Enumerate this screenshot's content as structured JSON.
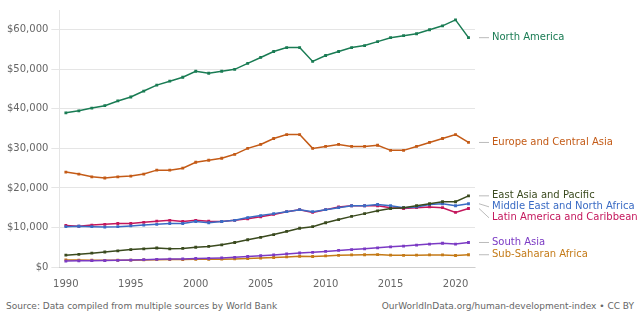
{
  "chart_data": {
    "type": "line",
    "x": [
      1990,
      1991,
      1992,
      1993,
      1994,
      1995,
      1996,
      1997,
      1998,
      1999,
      2000,
      2001,
      2002,
      2003,
      2004,
      2005,
      2006,
      2007,
      2008,
      2009,
      2010,
      2011,
      2012,
      2013,
      2014,
      2015,
      2016,
      2017,
      2018,
      2019,
      2020,
      2021
    ],
    "series": [
      {
        "name": "North America",
        "color": "#1a7c54",
        "values": [
          39000,
          39500,
          40200,
          40800,
          42000,
          43000,
          44500,
          46000,
          47000,
          48000,
          49500,
          49000,
          49500,
          50000,
          51500,
          53000,
          54500,
          55500,
          55500,
          52000,
          53500,
          54500,
          55500,
          56000,
          57000,
          58000,
          58500,
          59000,
          60000,
          61000,
          62500,
          58000
        ]
      },
      {
        "name": "Europe and Central Asia",
        "color": "#c45b17",
        "values": [
          24000,
          23500,
          22800,
          22500,
          22800,
          23000,
          23500,
          24500,
          24500,
          25000,
          26500,
          27000,
          27500,
          28500,
          30000,
          31000,
          32500,
          33500,
          33500,
          30000,
          30500,
          31000,
          30500,
          30500,
          30800,
          29500,
          29500,
          30500,
          31500,
          32500,
          33500,
          31500
        ]
      },
      {
        "name": "East Asia and Pacific",
        "color": "#3a4a1e",
        "values": [
          3000,
          3200,
          3500,
          3800,
          4100,
          4400,
          4600,
          4800,
          4600,
          4700,
          5000,
          5200,
          5600,
          6200,
          6900,
          7500,
          8200,
          9000,
          9800,
          10200,
          11200,
          12000,
          12800,
          13500,
          14200,
          14800,
          15000,
          15500,
          16000,
          16500,
          16500,
          18000
        ]
      },
      {
        "name": "Middle East and North Africa",
        "color": "#3a6bc4",
        "values": [
          10200,
          10300,
          10200,
          10100,
          10200,
          10400,
          10600,
          10800,
          11000,
          11000,
          11500,
          11200,
          11500,
          11800,
          12500,
          13000,
          13500,
          14000,
          14500,
          14000,
          14500,
          15000,
          15500,
          15500,
          15800,
          15500,
          15000,
          15200,
          15800,
          16000,
          15500,
          16000
        ]
      },
      {
        "name": "Latin America and Caribbean",
        "color": "#c4175c",
        "values": [
          10500,
          10300,
          10600,
          10800,
          11000,
          11000,
          11300,
          11600,
          11800,
          11500,
          11800,
          11600,
          11500,
          11800,
          12200,
          12700,
          13300,
          14000,
          14500,
          13800,
          14500,
          15200,
          15500,
          15500,
          15500,
          15000,
          14800,
          15000,
          15200,
          15000,
          13800,
          14800
        ]
      },
      {
        "name": "South Asia",
        "color": "#7b3ac4",
        "values": [
          1500,
          1550,
          1600,
          1620,
          1680,
          1750,
          1850,
          1950,
          2000,
          2050,
          2150,
          2200,
          2300,
          2450,
          2650,
          2850,
          3050,
          3300,
          3550,
          3700,
          3950,
          4200,
          4400,
          4600,
          4850,
          5100,
          5300,
          5550,
          5800,
          6000,
          5800,
          6200
        ]
      },
      {
        "name": "Sub-Saharan Africa",
        "color": "#c47a17",
        "values": [
          1800,
          1750,
          1700,
          1680,
          1700,
          1720,
          1800,
          1850,
          1870,
          1880,
          1950,
          1950,
          1980,
          2050,
          2150,
          2250,
          2400,
          2550,
          2700,
          2650,
          2800,
          2950,
          3050,
          3100,
          3150,
          3000,
          2950,
          3000,
          3050,
          3050,
          2900,
          3100
        ]
      }
    ],
    "xlim": [
      1989.5,
      2021.5
    ],
    "xticks": [
      1990,
      1995,
      2000,
      2005,
      2010,
      2015,
      2020
    ],
    "ylim": [
      0,
      65000
    ],
    "yticks": [
      {
        "value": 0,
        "label": "$0"
      },
      {
        "value": 10000,
        "label": "$10,000"
      },
      {
        "value": 20000,
        "label": "$20,000"
      },
      {
        "value": 30000,
        "label": "$30,000"
      },
      {
        "value": 40000,
        "label": "$40,000"
      },
      {
        "value": 50000,
        "label": "$50,000"
      },
      {
        "value": 60000,
        "label": "$60,000"
      }
    ],
    "grid": true,
    "marker": "square",
    "annotations": [
      "Source: Data compiled from multiple sources by World Bank",
      "OurWorldInData.org/human-development-index • CC BY"
    ]
  }
}
